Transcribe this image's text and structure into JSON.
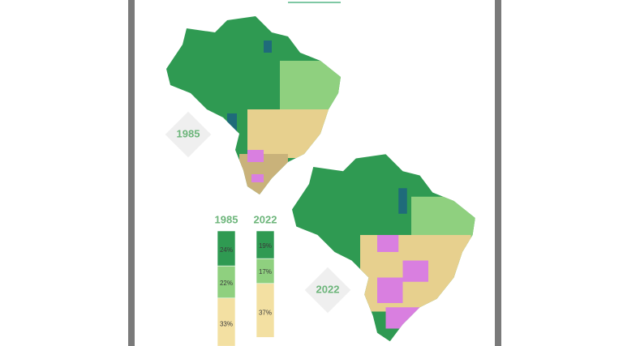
{
  "chart_data": {
    "type": "bar",
    "stacked": true,
    "categories": [
      "1985",
      "2022"
    ],
    "series": [
      {
        "color": "#2f9a52",
        "values": [
          24,
          19
        ],
        "value_labels": [
          "24%",
          "19%"
        ]
      },
      {
        "color": "#8fd07f",
        "values": [
          22,
          17
        ],
        "value_labels": [
          "22%",
          "17%"
        ]
      },
      {
        "color": "#f3e0a2",
        "values": [
          33,
          37
        ],
        "value_labels": [
          "33%",
          "37%"
        ]
      }
    ]
  }
}
